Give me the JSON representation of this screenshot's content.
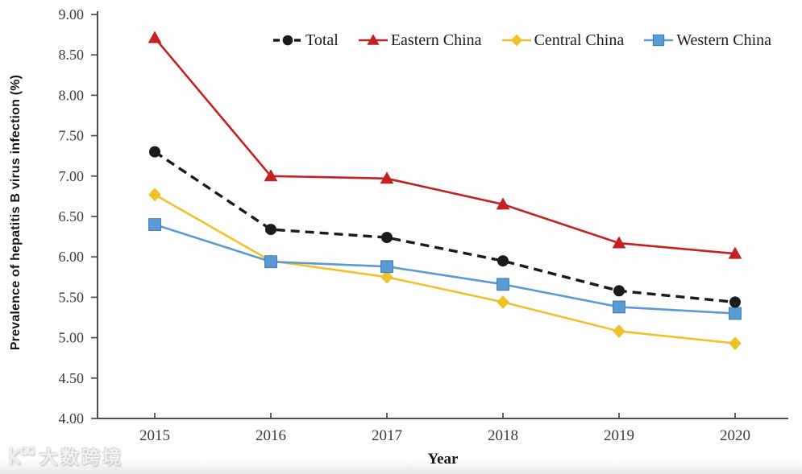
{
  "watermark": {
    "text": "大数跨境"
  },
  "chart_data": {
    "type": "line",
    "title": "",
    "xlabel": "Year",
    "ylabel": "Prevalence of hepatitis B virus infection (%)",
    "x": [
      "2015",
      "2016",
      "2017",
      "2018",
      "2019",
      "2020"
    ],
    "ylim": [
      4.0,
      9.0
    ],
    "ytick_labels": [
      "9.00",
      "8.50",
      "8.00",
      "7.50",
      "7.00",
      "6.50",
      "6.00",
      "5.50",
      "5.00",
      "4.50",
      "4.00"
    ],
    "grid": false,
    "legend_position": "top",
    "axis_color": "#4f4f4f",
    "series": [
      {
        "name": "Total",
        "color": "#1b1b1b",
        "marker": "circle",
        "line_style": "dashed",
        "values": [
          7.3,
          6.34,
          6.24,
          5.95,
          5.58,
          5.44
        ]
      },
      {
        "name": "Eastern China",
        "color": "#c32122",
        "marker": "triangle",
        "line_style": "solid",
        "values": [
          8.71,
          7.0,
          6.97,
          6.65,
          6.17,
          6.04
        ]
      },
      {
        "name": "Central China",
        "color": "#eec32a",
        "marker": "diamond",
        "line_style": "solid",
        "values": [
          6.77,
          5.95,
          5.75,
          5.44,
          5.08,
          4.93
        ]
      },
      {
        "name": "Western China",
        "color": "#5b9bd5",
        "marker": "square",
        "line_style": "solid",
        "values": [
          6.4,
          5.94,
          5.88,
          5.66,
          5.38,
          5.3
        ]
      }
    ]
  }
}
